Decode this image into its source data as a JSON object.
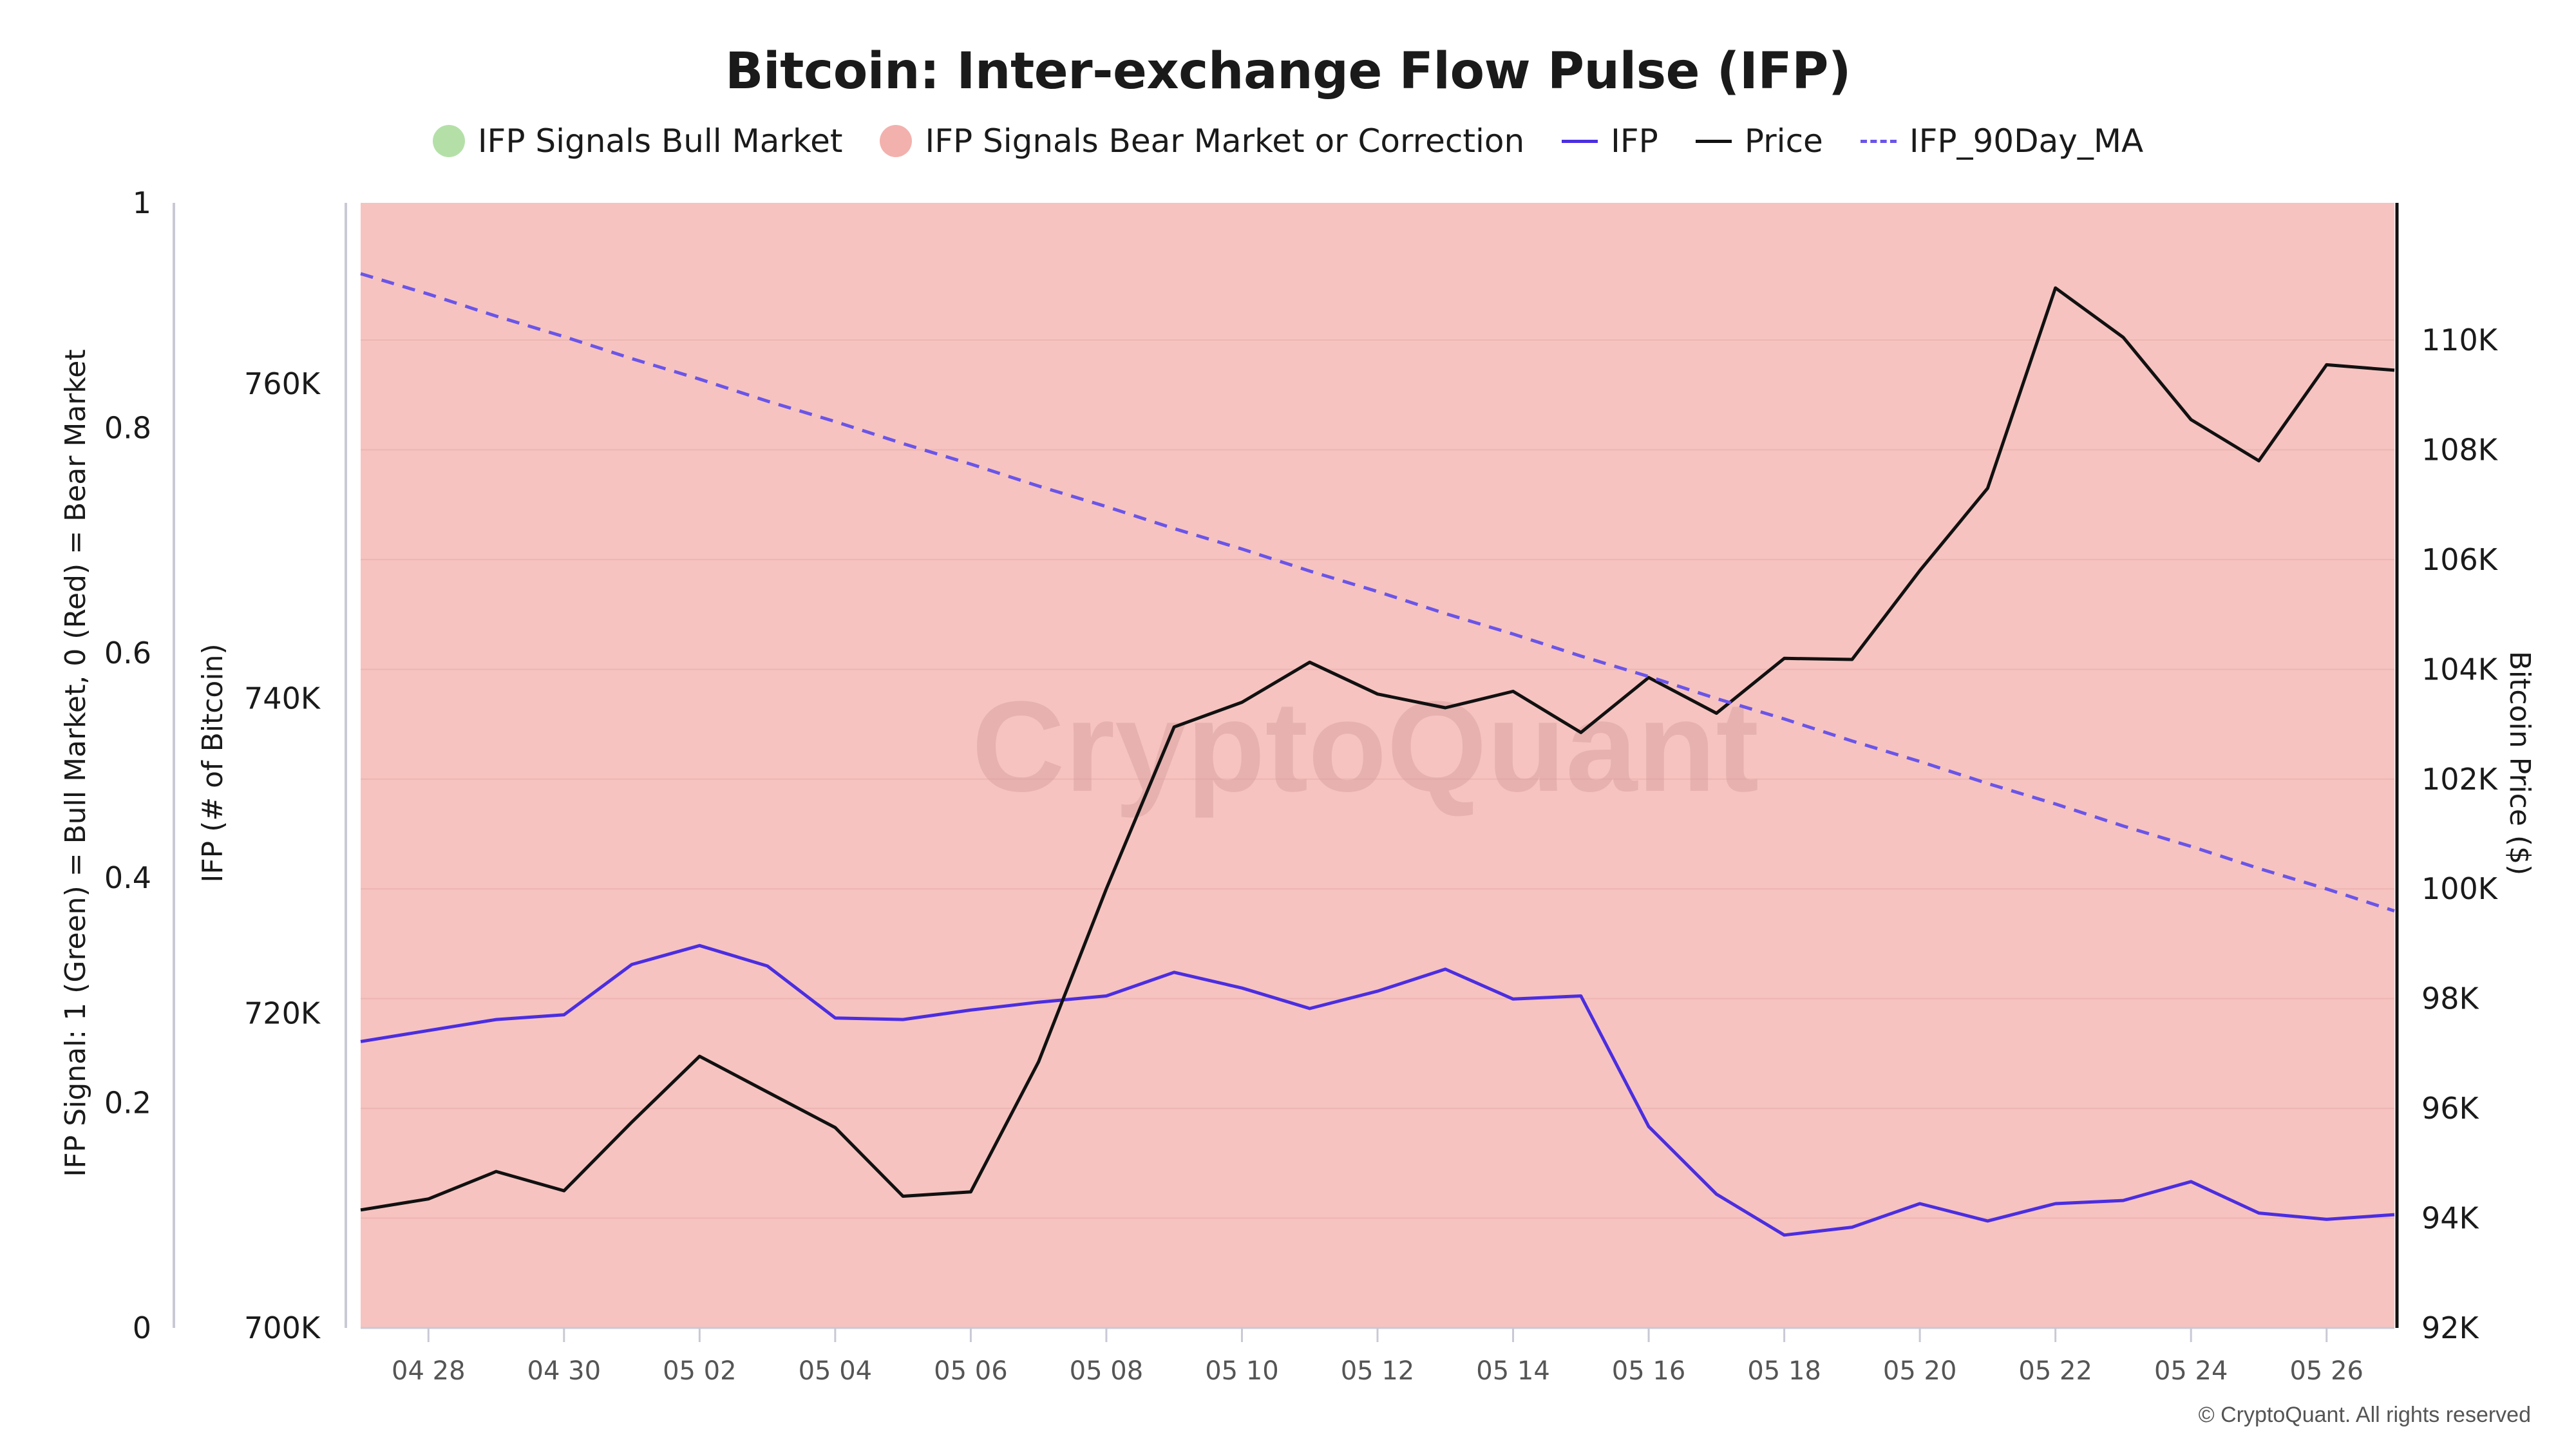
{
  "title": "Bitcoin: Inter-exchange Flow Pulse (IFP)",
  "legend": [
    {
      "label": "IFP Signals Bull Market",
      "kind": "dot",
      "color": "#b4e0a8"
    },
    {
      "label": "IFP Signals Bear Market or Correction",
      "kind": "dot",
      "color": "#f2b1ad"
    },
    {
      "label": "IFP",
      "kind": "line",
      "color": "#4b2ee0"
    },
    {
      "label": "Price",
      "kind": "line",
      "color": "#111111"
    },
    {
      "label": "IFP_90Day_MA",
      "kind": "dash",
      "color": "#6a55e8"
    }
  ],
  "watermark": "CryptoQuant",
  "footer": "© CryptoQuant. All rights reserved",
  "chart_data": {
    "type": "line",
    "background_signal": {
      "value": 0,
      "color": "#f6c3c0"
    },
    "x_ticks": [
      "04 28",
      "04 30",
      "05 02",
      "05 04",
      "05 06",
      "05 08",
      "05 10",
      "05 12",
      "05 14",
      "05 16",
      "05 18",
      "05 20",
      "05 22",
      "05 24",
      "05 26"
    ],
    "x_tick_index": [
      1,
      3,
      5,
      7,
      9,
      11,
      13,
      15,
      17,
      19,
      21,
      23,
      25,
      27,
      29
    ],
    "axes": {
      "signal": {
        "label": "IFP Signal: 1 (Green) = Bull Market, 0 (Red) = Bear Market",
        "min": 0,
        "max": 1,
        "ticks": [
          "0",
          "0.2",
          "0.4",
          "0.6",
          "0.8",
          "1"
        ],
        "tick_values": [
          0,
          0.2,
          0.4,
          0.6,
          0.8,
          1
        ]
      },
      "ifp": {
        "label": "IFP (# of Bitcoin)",
        "min": 700000,
        "max": 771500,
        "ticks": [
          "700K",
          "720K",
          "740K",
          "760K"
        ],
        "tick_values": [
          700000,
          720000,
          740000,
          760000
        ]
      },
      "price": {
        "label": "Bitcoin Price ($)",
        "min": 92000,
        "max": 112500,
        "ticks": [
          "92K",
          "94K",
          "96K",
          "98K",
          "100K",
          "102K",
          "104K",
          "106K",
          "108K",
          "110K"
        ],
        "tick_values": [
          92000,
          94000,
          96000,
          98000,
          100000,
          102000,
          104000,
          106000,
          108000,
          110000
        ]
      }
    },
    "series": [
      {
        "name": "IFP",
        "axis": "ifp",
        "color": "#4b2ee0",
        "style": "solid",
        "values": [
          718200,
          718900,
          719600,
          719900,
          723100,
          724300,
          723000,
          719700,
          719600,
          720200,
          720700,
          721100,
          722600,
          721600,
          720300,
          721400,
          722800,
          720900,
          721100,
          712800,
          708500,
          705900,
          706400,
          707900,
          706800,
          707900,
          708100,
          709300,
          707300,
          706900,
          707200
        ]
      },
      {
        "name": "Price",
        "axis": "price",
        "color": "#111111",
        "style": "solid",
        "values": [
          94150,
          94350,
          94850,
          94500,
          95750,
          96950,
          96300,
          95650,
          94400,
          94480,
          96850,
          100000,
          102950,
          103400,
          104130,
          103550,
          103300,
          103600,
          102850,
          103850,
          103200,
          104200,
          104180,
          105800,
          107300,
          110950,
          110050,
          108550,
          107800,
          109550,
          109450
        ]
      },
      {
        "name": "IFP_90Day_MA",
        "axis": "ifp",
        "color": "#6a55e8",
        "style": "dashed",
        "values": [
          767000,
          765700,
          764300,
          763000,
          761600,
          760300,
          758900,
          757600,
          756200,
          754900,
          753500,
          752200,
          750800,
          749500,
          748100,
          746800,
          745400,
          744100,
          742700,
          741400,
          740000,
          738700,
          737300,
          736000,
          734600,
          733300,
          731900,
          730600,
          729200,
          727900,
          726500
        ]
      }
    ]
  }
}
